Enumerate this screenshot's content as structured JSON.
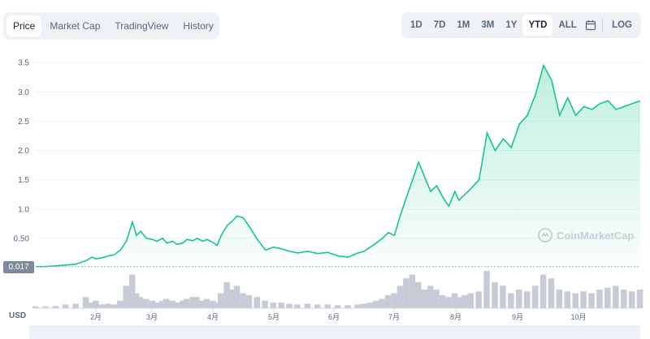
{
  "tabs": [
    "Price",
    "Market Cap",
    "TradingView",
    "History"
  ],
  "active_tab": "Price",
  "ranges": [
    "1D",
    "7D",
    "1M",
    "3M",
    "1Y",
    "YTD",
    "ALL"
  ],
  "active_range": "YTD",
  "log_label": "LOG",
  "icons": {
    "calendar": "calendar-icon",
    "watermark": "coinmarketcap-logo"
  },
  "current_price_label": "0.017",
  "currency_label": "USD",
  "watermark_text": "CoinMarketCap",
  "colors": {
    "line": "#16c784",
    "area_top": "#16c784",
    "volume": "#c7cbd6",
    "grid": "#eff2f5"
  },
  "chart_data": {
    "type": "area",
    "title": "",
    "xlabel": "",
    "ylabel": "",
    "y_ticks": [
      "0.50",
      "1.0",
      "1.5",
      "2.0",
      "2.5",
      "3.0",
      "3.5"
    ],
    "ylim": [
      0,
      3.6
    ],
    "x_ticks": [
      "2月",
      "3月",
      "4月",
      "5月",
      "6月",
      "7月",
      "8月",
      "9月",
      "10月"
    ],
    "x": [
      0,
      5,
      10,
      15,
      20,
      25,
      28,
      30,
      33,
      36,
      39,
      42,
      45,
      48,
      50,
      52,
      55,
      58,
      60,
      63,
      65,
      68,
      70,
      73,
      75,
      78,
      80,
      83,
      85,
      88,
      90,
      92,
      95,
      97,
      100,
      103,
      106,
      110,
      114,
      118,
      122,
      126,
      130,
      135,
      140,
      145,
      150,
      155,
      160,
      163,
      166,
      169,
      172,
      175,
      178,
      181,
      184,
      187,
      190,
      193,
      196,
      199,
      202,
      205,
      208,
      210,
      213,
      216,
      220,
      224,
      228,
      232,
      236,
      240,
      244,
      248,
      252,
      256,
      260,
      264,
      268,
      272,
      276,
      280,
      284,
      288,
      292,
      296,
      300
    ],
    "values": [
      0.017,
      0.02,
      0.03,
      0.045,
      0.06,
      0.12,
      0.18,
      0.15,
      0.17,
      0.2,
      0.22,
      0.3,
      0.45,
      0.78,
      0.55,
      0.62,
      0.5,
      0.48,
      0.45,
      0.5,
      0.42,
      0.45,
      0.4,
      0.42,
      0.48,
      0.46,
      0.5,
      0.45,
      0.48,
      0.43,
      0.38,
      0.55,
      0.72,
      0.78,
      0.88,
      0.85,
      0.7,
      0.48,
      0.3,
      0.35,
      0.32,
      0.28,
      0.25,
      0.28,
      0.24,
      0.26,
      0.2,
      0.18,
      0.25,
      0.28,
      0.35,
      0.42,
      0.5,
      0.6,
      0.55,
      0.9,
      1.2,
      1.5,
      1.8,
      1.55,
      1.3,
      1.4,
      1.2,
      1.05,
      1.3,
      1.15,
      1.25,
      1.35,
      1.5,
      2.3,
      2.0,
      2.2,
      2.05,
      2.45,
      2.6,
      2.95,
      3.45,
      3.2,
      2.6,
      2.9,
      2.6,
      2.75,
      2.7,
      2.8,
      2.85,
      2.7,
      2.75,
      2.8,
      2.85
    ],
    "volume": [
      0.05,
      0.05,
      0.06,
      0.1,
      0.12,
      0.3,
      0.15,
      0.2,
      0.1,
      0.12,
      0.1,
      0.2,
      0.6,
      0.9,
      0.4,
      0.3,
      0.25,
      0.2,
      0.15,
      0.2,
      0.25,
      0.2,
      0.15,
      0.2,
      0.25,
      0.3,
      0.3,
      0.2,
      0.25,
      0.2,
      0.15,
      0.4,
      0.7,
      0.5,
      0.6,
      0.4,
      0.35,
      0.3,
      0.2,
      0.15,
      0.15,
      0.12,
      0.1,
      0.12,
      0.1,
      0.1,
      0.08,
      0.08,
      0.1,
      0.12,
      0.15,
      0.2,
      0.25,
      0.35,
      0.4,
      0.6,
      0.8,
      0.9,
      0.7,
      0.5,
      0.6,
      0.5,
      0.35,
      0.3,
      0.4,
      0.3,
      0.35,
      0.4,
      0.45,
      1.0,
      0.7,
      0.6,
      0.4,
      0.5,
      0.45,
      0.6,
      0.9,
      0.8,
      0.5,
      0.45,
      0.4,
      0.45,
      0.4,
      0.5,
      0.55,
      0.6,
      0.5,
      0.45,
      0.5
    ]
  }
}
